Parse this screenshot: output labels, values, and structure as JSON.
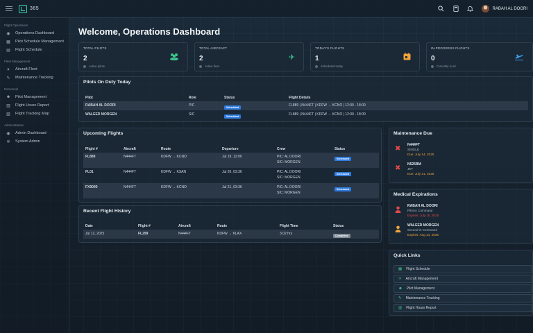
{
  "topbar": {
    "brand": "365",
    "user_name": "RABAH AL DOORI"
  },
  "sidebar": {
    "sections": [
      {
        "title": "Flight Operations",
        "items": [
          {
            "label": "Operations Dashboard",
            "icon": "dashboard-icon"
          },
          {
            "label": "Pilot Schedule Management",
            "icon": "calendar-icon"
          },
          {
            "label": "Flight Schedule",
            "icon": "schedule-icon"
          }
        ]
      },
      {
        "title": "Fleet Management",
        "items": [
          {
            "label": "Aircraft Fleet",
            "icon": "plane-icon"
          },
          {
            "label": "Maintenance Tracking",
            "icon": "wrench-icon"
          }
        ]
      },
      {
        "title": "Personnel",
        "items": [
          {
            "label": "Pilot Management",
            "icon": "users-icon"
          },
          {
            "label": "Flight Hours Report",
            "icon": "report-icon"
          },
          {
            "label": "Flight Tracking Map",
            "icon": "map-icon"
          }
        ]
      },
      {
        "title": "Administration",
        "items": [
          {
            "label": "Admin Dashboard",
            "icon": "dashboard-icon"
          },
          {
            "label": "System Admin",
            "icon": "gear-icon"
          }
        ]
      }
    ]
  },
  "page_title": "Welcome, Operations Dashboard",
  "stats": [
    {
      "label": "TOTAL PILOTS",
      "value": "2",
      "sub": "Active pilots",
      "icon": "users-icon",
      "color": "#3bc48e"
    },
    {
      "label": "TOTAL AIRCRAFT",
      "value": "2",
      "sub": "Active fleet",
      "icon": "plane-icon",
      "color": "#3bc48e"
    },
    {
      "label": "TODAY'S FLIGHTS",
      "value": "1",
      "sub": "Scheduled today",
      "icon": "calendar-icon",
      "color": "#f2a33a"
    },
    {
      "label": "IN-PROGRESS FLIGHTS",
      "value": "0",
      "sub": "Currently in air",
      "icon": "takeoff-icon",
      "color": "#3a9ee8"
    }
  ],
  "pilots_on_duty": {
    "title": "Pilots On Duty Today",
    "headers": [
      "Pilot",
      "Role",
      "Status",
      "Flight Details"
    ],
    "rows": [
      {
        "pilot": "RABAH AL DOORI",
        "role": "PIC",
        "status": "Scheduled",
        "details": "FL889 | N444FT | KDFW → KCNO | 12:00 - 18:00"
      },
      {
        "pilot": "WALEED MORGEN",
        "role": "SIC",
        "status": "Scheduled",
        "details": "FL889 | N444FT | KDFW → KCNO | 12:00 - 18:00"
      }
    ]
  },
  "upcoming_flights": {
    "title": "Upcoming Flights",
    "headers": [
      "Flight #",
      "Aircraft",
      "Route",
      "Departure",
      "Crew",
      "Status"
    ],
    "rows": [
      {
        "flight": "FL889",
        "aircraft": "N444FT",
        "route": "KDFW → KCNO",
        "departure": "Jul 19, 12:00",
        "crew1": "PIC: AL DOORI",
        "crew2": "SIC: MORGEN",
        "status": "Scheduled"
      },
      {
        "flight": "FL01",
        "aircraft": "N444FT",
        "route": "KDFW → KSAN",
        "departure": "Jul 20, 03:36",
        "crew1": "PIC: AL DOORI",
        "crew2": "SIC: MORGEN",
        "status": "Scheduled"
      },
      {
        "flight": "FX9090",
        "aircraft": "N444FT",
        "route": "KDFW → KCNO",
        "departure": "Jul 21, 03:36",
        "crew1": "PIC: AL DOORI",
        "crew2": "SIC: MORGEN",
        "status": "Scheduled"
      }
    ]
  },
  "recent_history": {
    "title": "Recent Flight History",
    "headers": [
      "Date",
      "Flight #",
      "Aircraft",
      "Route",
      "Flight Time",
      "Status"
    ],
    "rows": [
      {
        "date": "Jul 12, 2025",
        "flight": "FL299",
        "aircraft": "N444FT",
        "route": "KDFW → KLAX",
        "time": "3.02 hrs",
        "status": "Completed"
      }
    ]
  },
  "maintenance": {
    "title": "Maintenance Due",
    "items": [
      {
        "reg": "N444FT",
        "type": "SINGLE",
        "due": "Due: July 14, 2025"
      },
      {
        "reg": "N525BM",
        "type": "JET",
        "due": "Due: July 21, 2025"
      }
    ]
  },
  "medical": {
    "title": "Medical Expirations",
    "items": [
      {
        "name": "RABAH AL DOORI",
        "role": "Pilot in Command",
        "exp": "Expires: July 15, 2025",
        "color": "#e04848"
      },
      {
        "name": "WALEED MORGEN",
        "role": "Second in Command",
        "exp": "Expires: Aug 14, 2025",
        "color": "#f2a33a"
      }
    ]
  },
  "quick_links": {
    "title": "Quick Links",
    "items": [
      {
        "label": "Flight Schedule",
        "icon": "calendar-icon"
      },
      {
        "label": "Aircraft Management",
        "icon": "plane-icon"
      },
      {
        "label": "Pilot Management",
        "icon": "users-icon"
      },
      {
        "label": "Maintenance Tracking",
        "icon": "wrench-icon"
      },
      {
        "label": "Flight Hours Report",
        "icon": "report-icon"
      }
    ]
  }
}
